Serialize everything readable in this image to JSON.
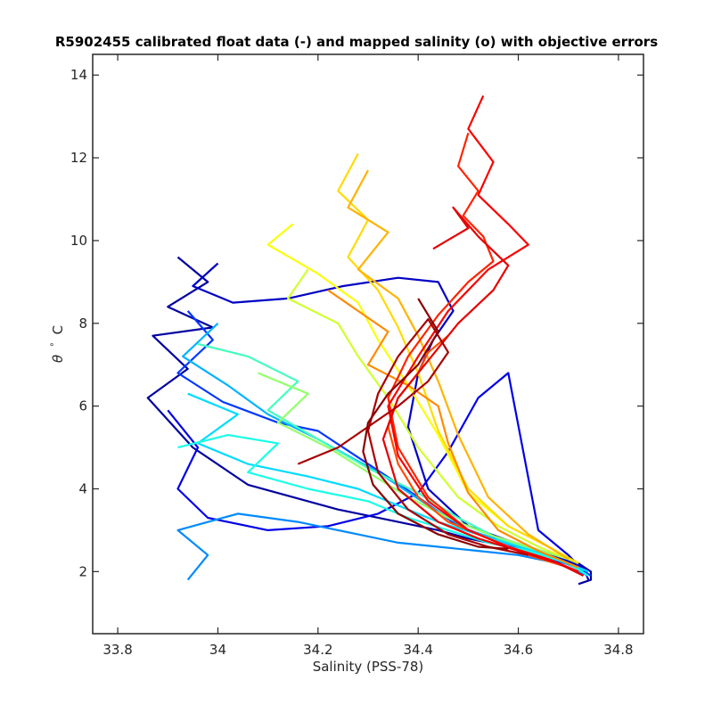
{
  "chart_data": {
    "type": "line",
    "title": "R5902455 calibrated float data (-) and mapped salinity (o) with objective errors",
    "xlabel": "Salinity (PSS-78)",
    "ylabel_symbol": "θ",
    "ylabel_degree": "°",
    "ylabel_unit": "C",
    "xlim": [
      33.75,
      34.85
    ],
    "ylim": [
      0.5,
      14.5
    ],
    "xticks": [
      33.8,
      34,
      34.2,
      34.4,
      34.6,
      34.8
    ],
    "xtick_labels": [
      "33.8",
      "34",
      "34.2",
      "34.4",
      "34.6",
      "34.8"
    ],
    "yticks": [
      2,
      4,
      6,
      8,
      10,
      12,
      14
    ],
    "ytick_labels": [
      "2",
      "4",
      "6",
      "8",
      "10",
      "12",
      "14"
    ],
    "grid": false,
    "colormap": "jet",
    "colormap_stops": [
      "#00008f",
      "#0000ff",
      "#0080ff",
      "#00ffff",
      "#80ff80",
      "#ffff00",
      "#ff8000",
      "#ff0000",
      "#800000"
    ],
    "series": [
      {
        "color_index": 0.02,
        "x": [
          33.92,
          33.98,
          33.9,
          33.99,
          33.87,
          33.94,
          33.86,
          33.95,
          34.06,
          34.24,
          34.36,
          34.44,
          34.5,
          34.56,
          34.62,
          34.68,
          34.72,
          34.745,
          34.745,
          34.72
        ],
        "y": [
          9.6,
          9.0,
          8.4,
          7.9,
          7.7,
          6.9,
          6.2,
          5.0,
          4.1,
          3.5,
          3.2,
          3.0,
          2.8,
          2.65,
          2.5,
          2.35,
          2.2,
          2.0,
          1.8,
          1.7
        ]
      },
      {
        "color_index": 0.06,
        "x": [
          34.0,
          33.95,
          34.03,
          34.14,
          34.25,
          34.36,
          34.44,
          34.47,
          34.43,
          34.4,
          34.38,
          34.42,
          34.5,
          34.58,
          34.66,
          34.73,
          34.74
        ],
        "y": [
          9.45,
          8.9,
          8.5,
          8.6,
          8.9,
          9.1,
          9.0,
          8.3,
          7.6,
          6.8,
          5.5,
          4.0,
          3.1,
          2.75,
          2.45,
          2.1,
          1.8
        ]
      },
      {
        "color_index": 0.1,
        "x": [
          33.9,
          33.96,
          33.92,
          33.98,
          34.1,
          34.22,
          34.32,
          34.4,
          34.46,
          34.52,
          34.58,
          34.64,
          34.7,
          34.74
        ],
        "y": [
          5.9,
          5.0,
          4.0,
          3.3,
          3.0,
          3.1,
          3.4,
          3.9,
          4.9,
          6.2,
          6.8,
          3.0,
          2.4,
          1.9
        ]
      },
      {
        "color_index": 0.18,
        "x": [
          33.94,
          33.99,
          33.92,
          34.01,
          34.12,
          34.2,
          34.3,
          34.4,
          34.48,
          34.56,
          34.64,
          34.72,
          34.745
        ],
        "y": [
          8.3,
          7.6,
          6.8,
          6.1,
          5.6,
          5.4,
          4.6,
          3.8,
          3.1,
          2.75,
          2.4,
          2.1,
          1.9
        ]
      },
      {
        "color_index": 0.26,
        "x": [
          33.94,
          33.98,
          33.92,
          34.04,
          34.16,
          34.28,
          34.36,
          34.44,
          34.52,
          34.6,
          34.68,
          34.74
        ],
        "y": [
          1.8,
          2.4,
          3.0,
          3.4,
          3.2,
          2.9,
          2.7,
          2.6,
          2.5,
          2.4,
          2.2,
          1.9
        ]
      },
      {
        "color_index": 0.3,
        "x": [
          34.0,
          33.93,
          34.02,
          34.1,
          34.2,
          34.32,
          34.42,
          34.5,
          34.58,
          34.66,
          34.73
        ],
        "y": [
          8.0,
          7.2,
          6.5,
          5.8,
          5.2,
          4.4,
          3.6,
          3.0,
          2.7,
          2.4,
          2.0
        ]
      },
      {
        "color_index": 0.34,
        "x": [
          33.94,
          34.04,
          33.96,
          34.06,
          34.18,
          34.28,
          34.36,
          34.44,
          34.52,
          34.6,
          34.68,
          34.74
        ],
        "y": [
          6.3,
          5.8,
          5.1,
          4.6,
          4.3,
          4.0,
          3.6,
          3.2,
          2.9,
          2.6,
          2.3,
          2.0
        ]
      },
      {
        "color_index": 0.4,
        "x": [
          33.92,
          34.02,
          34.12,
          34.06,
          34.18,
          34.3,
          34.38,
          34.46,
          34.54,
          34.62,
          34.7,
          34.74
        ],
        "y": [
          5.0,
          5.3,
          5.1,
          4.4,
          4.0,
          3.7,
          3.3,
          3.0,
          2.7,
          2.5,
          2.2,
          1.9
        ]
      },
      {
        "color_index": 0.44,
        "x": [
          33.96,
          34.06,
          34.16,
          34.1,
          34.2,
          34.3,
          34.4,
          34.48,
          34.56,
          34.64,
          34.72
        ],
        "y": [
          7.5,
          7.2,
          6.6,
          5.9,
          5.2,
          4.5,
          3.9,
          3.3,
          2.8,
          2.5,
          2.1
        ]
      },
      {
        "color_index": 0.52,
        "x": [
          34.08,
          34.18,
          34.12,
          34.22,
          34.3,
          34.38,
          34.46,
          34.54,
          34.62,
          34.7
        ],
        "y": [
          6.8,
          6.3,
          5.6,
          5.0,
          4.4,
          3.8,
          3.3,
          2.9,
          2.6,
          2.3
        ]
      },
      {
        "color_index": 0.58,
        "x": [
          34.18,
          34.14,
          34.24,
          34.28,
          34.34,
          34.4,
          34.48,
          34.56,
          34.64,
          34.72
        ],
        "y": [
          9.3,
          8.6,
          8.0,
          7.2,
          6.2,
          5.0,
          3.8,
          3.1,
          2.6,
          2.2
        ]
      },
      {
        "color_index": 0.62,
        "x": [
          34.15,
          34.1,
          34.2,
          34.28,
          34.32,
          34.38,
          34.44,
          34.5,
          34.58,
          34.66,
          34.72
        ],
        "y": [
          10.4,
          9.9,
          9.2,
          8.5,
          7.6,
          6.5,
          5.3,
          3.9,
          3.1,
          2.6,
          2.2
        ]
      },
      {
        "color_index": 0.66,
        "x": [
          34.28,
          34.24,
          34.3,
          34.26,
          34.32,
          34.36,
          34.4,
          34.44,
          34.5,
          34.58,
          34.66,
          34.72
        ],
        "y": [
          12.1,
          11.2,
          10.5,
          9.6,
          8.8,
          7.9,
          6.8,
          5.4,
          4.0,
          3.1,
          2.6,
          2.2
        ]
      },
      {
        "color_index": 0.7,
        "x": [
          34.3,
          34.26,
          34.34,
          34.28,
          34.36,
          34.4,
          34.44,
          34.48,
          34.54,
          34.62,
          34.7
        ],
        "y": [
          11.7,
          10.8,
          10.2,
          9.3,
          8.6,
          7.7,
          6.6,
          5.3,
          3.8,
          2.9,
          2.3
        ]
      },
      {
        "color_index": 0.74,
        "x": [
          34.22,
          34.28,
          34.34,
          34.3,
          34.38,
          34.44,
          34.46,
          34.5,
          34.56,
          34.64,
          34.72
        ],
        "y": [
          8.8,
          8.3,
          7.8,
          7.0,
          6.5,
          6.0,
          5.1,
          3.9,
          3.0,
          2.5,
          2.1
        ]
      },
      {
        "color_index": 0.8,
        "x": [
          34.46,
          34.42,
          34.4,
          34.36,
          34.34,
          34.36,
          34.4,
          34.46,
          34.54,
          34.62,
          34.7
        ],
        "y": [
          7.7,
          7.3,
          6.8,
          6.2,
          5.5,
          4.6,
          3.8,
          3.2,
          2.8,
          2.4,
          2.1
        ]
      },
      {
        "color_index": 0.84,
        "x": [
          34.5,
          34.48,
          34.52,
          34.49,
          34.53,
          34.55,
          34.5,
          34.44,
          34.38,
          34.34,
          34.36,
          34.42,
          34.5,
          34.58,
          34.66,
          34.72
        ],
        "y": [
          12.6,
          11.8,
          11.2,
          10.6,
          10.1,
          9.5,
          9.0,
          8.2,
          7.2,
          6.2,
          5.0,
          3.8,
          3.0,
          2.6,
          2.3,
          2.0
        ]
      },
      {
        "color_index": 0.88,
        "x": [
          34.53,
          34.5,
          34.55,
          34.52,
          34.58,
          34.62,
          34.54,
          34.46,
          34.4,
          34.34,
          34.36,
          34.42,
          34.5,
          34.58,
          34.66,
          34.72
        ],
        "y": [
          13.5,
          12.7,
          11.9,
          11.1,
          10.4,
          9.9,
          9.3,
          8.3,
          7.2,
          6.0,
          4.8,
          3.7,
          3.0,
          2.6,
          2.3,
          2.0
        ]
      },
      {
        "color_index": 0.9,
        "x": [
          34.43,
          34.5,
          34.47,
          34.52,
          34.58,
          34.55,
          34.48,
          34.42,
          34.36,
          34.33,
          34.36,
          34.44,
          34.52,
          34.6,
          34.68,
          34.73
        ],
        "y": [
          9.8,
          10.3,
          10.8,
          10.1,
          9.4,
          8.8,
          8.0,
          7.1,
          6.2,
          5.2,
          4.0,
          3.2,
          2.8,
          2.5,
          2.2,
          1.9
        ]
      },
      {
        "color_index": 0.96,
        "x": [
          34.16,
          34.24,
          34.3,
          34.36,
          34.42,
          34.46,
          34.42,
          34.36,
          34.32,
          34.3,
          34.32,
          34.38,
          34.46,
          34.54,
          34.62
        ],
        "y": [
          4.6,
          5.0,
          5.5,
          6.0,
          6.6,
          7.3,
          8.1,
          7.2,
          6.3,
          5.4,
          4.4,
          3.5,
          2.9,
          2.6,
          2.4
        ]
      },
      {
        "color_index": 0.99,
        "x": [
          34.4,
          34.44,
          34.4,
          34.34,
          34.3,
          34.29,
          34.31,
          34.36,
          34.44,
          34.52,
          34.58
        ],
        "y": [
          8.6,
          7.8,
          7.0,
          6.3,
          5.6,
          4.9,
          4.1,
          3.4,
          2.9,
          2.6,
          2.55
        ]
      }
    ]
  }
}
